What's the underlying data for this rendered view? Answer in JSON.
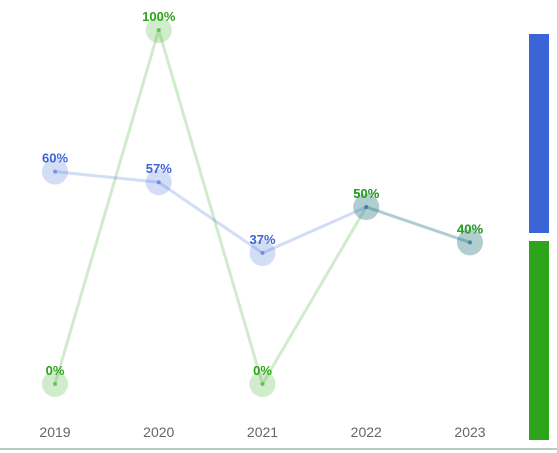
{
  "chart_data": {
    "type": "line",
    "categories": [
      "2019",
      "2020",
      "2021",
      "2022",
      "2023"
    ],
    "ylim": [
      0,
      100
    ],
    "value_suffix": "%",
    "grid": false,
    "legend": "right-edge color bars",
    "series": [
      {
        "color": "#3b64d6",
        "values": [
          60,
          57,
          37,
          50,
          40
        ],
        "labels": [
          "60%",
          "57%",
          "37%",
          "50%",
          "40%"
        ]
      },
      {
        "color": "#2ea41a",
        "values": [
          0,
          100,
          0,
          50,
          40
        ],
        "labels": [
          "0%",
          "100%",
          "0%",
          "50%",
          "40%"
        ]
      }
    ]
  }
}
